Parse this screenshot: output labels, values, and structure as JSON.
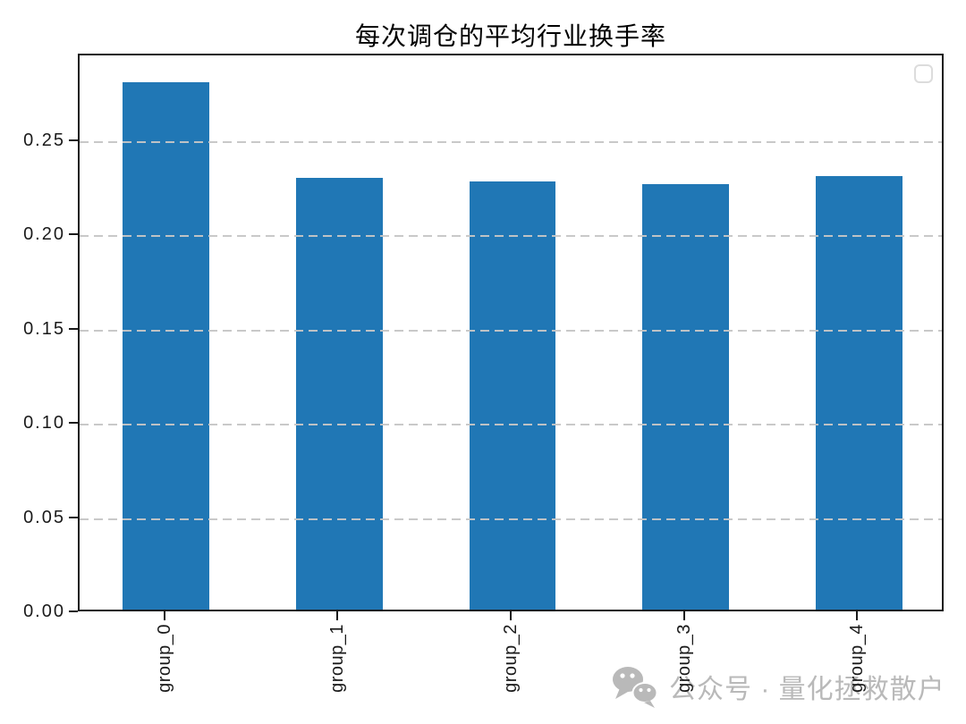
{
  "chart_data": {
    "type": "bar",
    "title": "每次调仓的平均行业换手率",
    "categories": [
      "group_0",
      "group_1",
      "group_2",
      "group_3",
      "group_4"
    ],
    "values": [
      0.28,
      0.229,
      0.227,
      0.226,
      0.23
    ],
    "xlabel": "",
    "ylabel": "",
    "ylim": [
      0,
      0.296
    ],
    "yticks": [
      {
        "value": 0.0,
        "label": "0.00"
      },
      {
        "value": 0.05,
        "label": "0.05"
      },
      {
        "value": 0.1,
        "label": "0.10"
      },
      {
        "value": 0.15,
        "label": "0.15"
      },
      {
        "value": 0.2,
        "label": "0.20"
      },
      {
        "value": 0.25,
        "label": "0.25"
      }
    ],
    "grid": {
      "axis": "y",
      "style": "dashed",
      "drawn_on_top_of_bars": true
    },
    "xtick_rotation": 90,
    "bar_width_ratio": 0.5,
    "legend": {
      "visible": true,
      "entries": [],
      "position": "upper right"
    }
  },
  "colors": {
    "bar": "#2077b5",
    "grid": "#c6c6c6",
    "axis": "#1a1a1a",
    "title": "#000000",
    "watermark": "#b9b9b9",
    "legend_border": "#dcdcdc"
  },
  "watermark": {
    "icon": "wechat-icon",
    "text": "公众号 · 量化拯救散户"
  }
}
